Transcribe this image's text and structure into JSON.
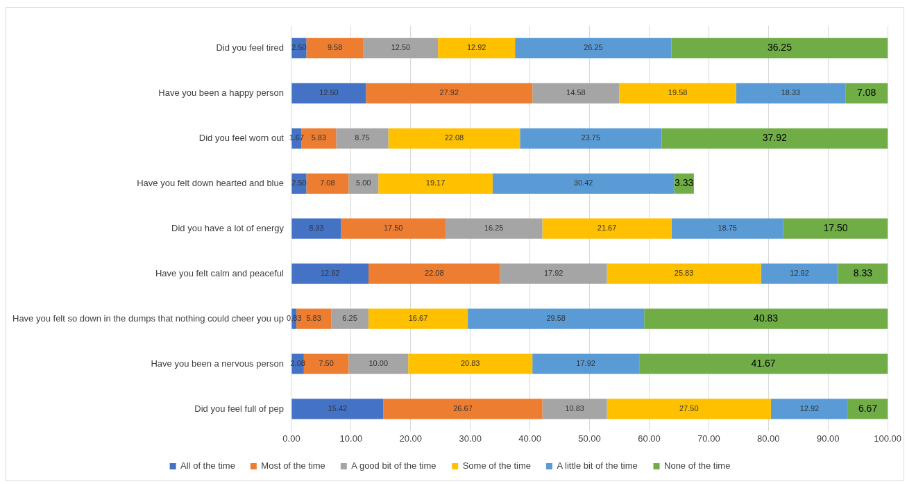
{
  "chart_data": {
    "type": "bar",
    "orientation": "horizontal",
    "stacked": true,
    "categories": [
      "Did you feel tired",
      "Have you been a happy person",
      "Did you feel worn out",
      "Have you felt down hearted and blue",
      "Did you have a lot of energy",
      "Have you felt calm and peaceful",
      "Have you felt so down in the dumps that nothing could cheer you up",
      "Have you been a nervous person",
      "Did you feel full of pep"
    ],
    "series": [
      {
        "name": "All of the time",
        "color": "#4472c4",
        "values": [
          2.5,
          12.5,
          1.67,
          2.5,
          8.33,
          12.92,
          0.83,
          2.08,
          15.42
        ],
        "value_labels": [
          "2.50",
          "12.50",
          "1.67",
          "2.50",
          "8.33",
          "12.92",
          "0.83",
          "2.08",
          "15.42"
        ]
      },
      {
        "name": "Most of the time",
        "color": "#ed7d31",
        "values": [
          9.58,
          27.92,
          5.83,
          7.08,
          17.5,
          22.08,
          5.83,
          7.5,
          26.67
        ],
        "value_labels": [
          "9.58",
          "27.92",
          "5.83",
          "7.08",
          "17.50",
          "22.08",
          "5.83",
          "7.50",
          "26.67"
        ]
      },
      {
        "name": "A good bit of the time",
        "color": "#a5a5a5",
        "values": [
          12.5,
          14.58,
          8.75,
          5.0,
          16.25,
          17.92,
          6.25,
          10.0,
          10.83
        ],
        "value_labels": [
          "12.50",
          "14.58",
          "8.75",
          "5.00",
          "16.25",
          "17.92",
          "6.25",
          "10.00",
          "10.83"
        ]
      },
      {
        "name": "Some of the time",
        "color": "#ffc000",
        "values": [
          12.92,
          19.58,
          22.08,
          19.17,
          21.67,
          25.83,
          16.67,
          20.83,
          27.5
        ],
        "value_labels": [
          "12.92",
          "19.58",
          "22.08",
          "19.17",
          "21.67",
          "25.83",
          "16.67",
          "20.83",
          "27.50"
        ]
      },
      {
        "name": "A little bit of the time",
        "color": "#5b9bd5",
        "values": [
          26.25,
          18.33,
          23.75,
          30.42,
          18.75,
          12.92,
          29.58,
          17.92,
          12.92
        ],
        "value_labels": [
          "26.25",
          "18.33",
          "23.75",
          "30.42",
          "18.75",
          "12.92",
          "29.58",
          "17.92",
          "12.92"
        ]
      },
      {
        "name": "None of the time",
        "color": "#70ad47",
        "values": [
          36.25,
          7.08,
          37.92,
          3.33,
          17.5,
          8.33,
          40.83,
          41.67,
          6.67
        ],
        "value_labels": [
          "36.25",
          "7.08",
          "37.92",
          "3.33",
          "17.50",
          "8.33",
          "40.83",
          "41.67",
          "6.67"
        ]
      }
    ],
    "xlim": [
      0,
      100
    ],
    "xticks": [
      {
        "value": 0,
        "label": "0.00"
      },
      {
        "value": 10,
        "label": "10.00"
      },
      {
        "value": 20,
        "label": "20.00"
      },
      {
        "value": 30,
        "label": "30.00"
      },
      {
        "value": 40,
        "label": "40.00"
      },
      {
        "value": 50,
        "label": "50.00"
      },
      {
        "value": 60,
        "label": "60.00"
      },
      {
        "value": 70,
        "label": "70.00"
      },
      {
        "value": 80,
        "label": "80.00"
      },
      {
        "value": 90,
        "label": "90.00"
      },
      {
        "value": 100,
        "label": "100.00"
      }
    ],
    "grid": "x",
    "legend": "bottom"
  }
}
